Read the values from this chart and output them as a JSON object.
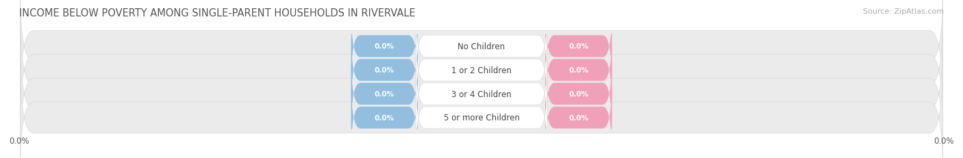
{
  "title": "INCOME BELOW POVERTY AMONG SINGLE-PARENT HOUSEHOLDS IN RIVERVALE",
  "source": "Source: ZipAtlas.com",
  "categories": [
    "No Children",
    "1 or 2 Children",
    "3 or 4 Children",
    "5 or more Children"
  ],
  "father_values": [
    0.0,
    0.0,
    0.0,
    0.0
  ],
  "mother_values": [
    0.0,
    0.0,
    0.0,
    0.0
  ],
  "father_color": "#92bfe0",
  "mother_color": "#f0a0b8",
  "row_bg_color": "#ebebeb",
  "row_edge_color": "#d8d8d8",
  "center_box_color": "#ffffff",
  "center_box_edge": "#dddddd",
  "axis_range": 100,
  "x_tick_label": "0.0%",
  "title_fontsize": 10.5,
  "source_fontsize": 8,
  "label_fontsize": 8.5,
  "value_fontsize": 7.5,
  "tick_fontsize": 8.5,
  "background_color": "#ffffff",
  "text_color": "#555555",
  "value_text_color": "#ffffff",
  "center_label_color": "#444444"
}
